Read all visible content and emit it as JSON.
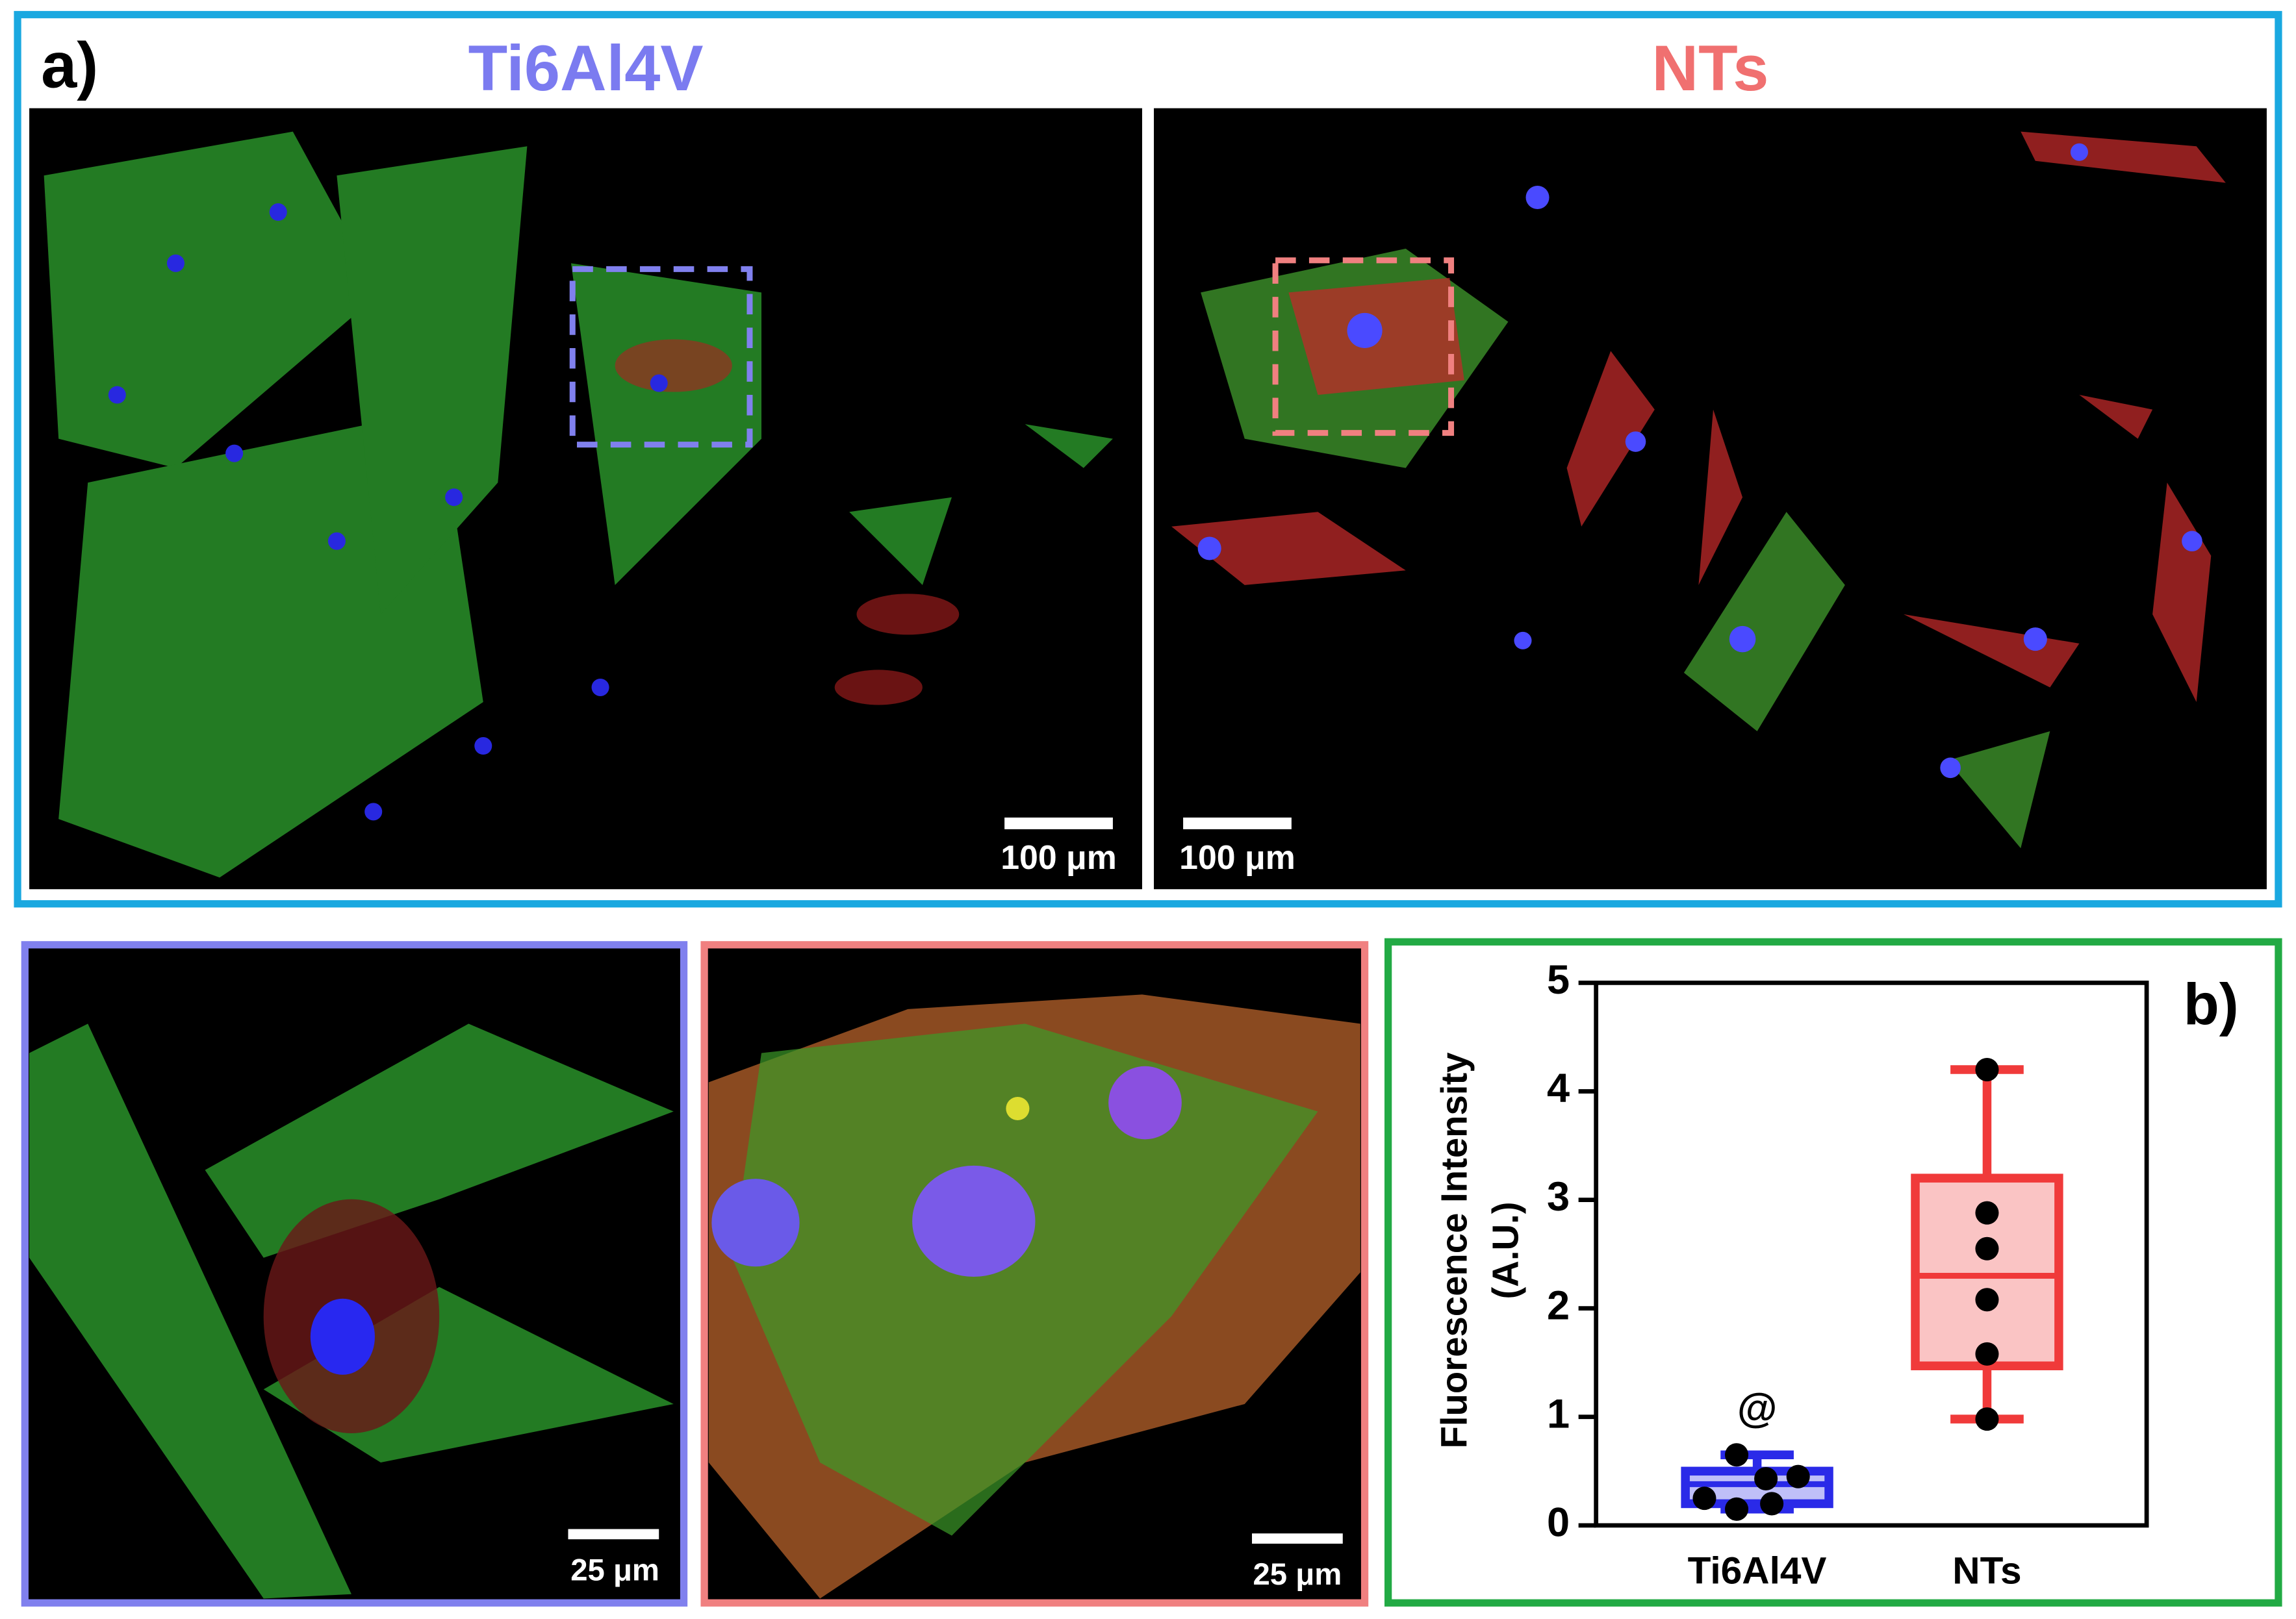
{
  "figure": {
    "panel_a_label": "a)",
    "titles": [
      "Ti6Al4V",
      "NTs"
    ],
    "scale_bars_a": [
      "100 μm",
      "100 μm"
    ],
    "scale_bars_zoom": [
      "25 μm",
      "25 μm"
    ]
  },
  "chart_data": {
    "type": "box",
    "panel_label": "b)",
    "ylabel": [
      "Fluorescence Intensity",
      "(A.U.)"
    ],
    "categories": [
      "Ti6Al4V",
      "NTs"
    ],
    "boxes": [
      {
        "color": "#2a2ae8",
        "whisker_low": 0.15,
        "q1": 0.2,
        "median": 0.38,
        "q3": 0.5,
        "whisker_high": 0.65,
        "points": [
          0.65,
          0.45,
          0.43,
          0.25,
          0.2,
          0.15
        ],
        "annotation": "@"
      },
      {
        "color": "#f03a3a",
        "whisker_low": 0.98,
        "q1": 1.47,
        "median": 2.3,
        "q3": 3.2,
        "whisker_high": 4.2,
        "points": [
          4.2,
          2.88,
          2.55,
          2.08,
          1.58,
          0.98
        ]
      }
    ],
    "ylim": [
      0,
      5
    ],
    "yticks": [
      0,
      1,
      2,
      3,
      4,
      5
    ]
  }
}
